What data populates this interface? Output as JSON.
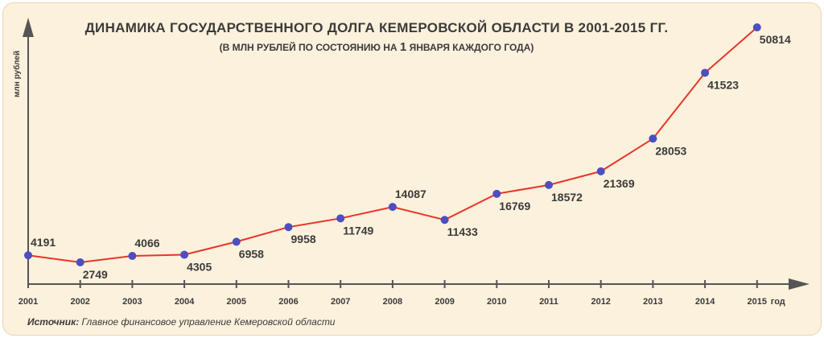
{
  "chart_data": {
    "type": "line",
    "title": "ДИНАМИКА ГОСУДАРСТВЕННОГО ДОЛГА КЕМЕРОВСКОЙ ОБЛАСТИ В 2001-2015 ГГ.",
    "subtitle_pre": "(В МЛН РУБЛЕЙ ПО СОСТОЯНИЮ НА ",
    "subtitle_num": "1",
    "subtitle_post": " ЯНВАРЯ КАЖДОГО ГОДА)",
    "ylabel": "млн рублей",
    "xlabel": "год",
    "categories": [
      "2001",
      "2002",
      "2003",
      "2004",
      "2005",
      "2006",
      "2007",
      "2008",
      "2009",
      "2010",
      "2011",
      "2012",
      "2013",
      "2014",
      "2015"
    ],
    "values": [
      4191,
      2749,
      4066,
      4305,
      6958,
      9958,
      11749,
      14087,
      11433,
      16769,
      18572,
      21369,
      28053,
      41523,
      50814
    ],
    "label_position": [
      "above",
      "below",
      "above",
      "below",
      "below",
      "below",
      "below",
      "above",
      "below",
      "below",
      "below",
      "below",
      "below",
      "below",
      "below"
    ],
    "grid": false,
    "line_color": "#e8352a",
    "marker_color": "#4b4fbf",
    "axis_color": "#555555"
  },
  "source": {
    "label": "Источник:",
    "text": " Главное финансовое управление Кемеровской области"
  }
}
